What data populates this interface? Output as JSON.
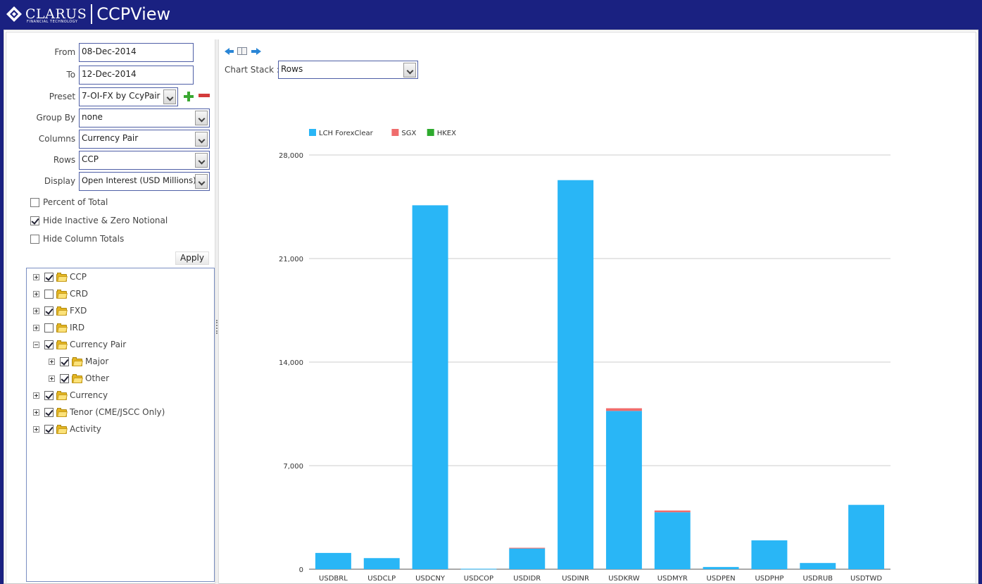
{
  "header": {
    "logo_text": "CLARUS",
    "logo_sub": "FINANCIAL TECHNOLOGY",
    "app_title": "CCPView"
  },
  "filters": {
    "from_label": "From :",
    "from_value": "08-Dec-2014",
    "to_label": "To :",
    "to_value": "12-Dec-2014",
    "preset_label": "Preset :",
    "preset_value": "7-OI-FX by CcyPair",
    "group_by_label": "Group By :",
    "group_by_value": "none",
    "columns_label": "Columns :",
    "columns_value": "Currency Pair",
    "rows_label": "Rows :",
    "rows_value": "CCP",
    "display_label": "Display :",
    "display_value": "Open Interest (USD Millions)"
  },
  "options": {
    "percent_of_total": {
      "label": "Percent of Total",
      "checked": false
    },
    "hide_inactive": {
      "label": "Hide Inactive & Zero Notional",
      "checked": true
    },
    "hide_column_totals": {
      "label": "Hide Column Totals",
      "checked": false
    }
  },
  "apply_label": "Apply",
  "tree": [
    {
      "label": "CCP",
      "checked": true,
      "expanded": false,
      "level": 0
    },
    {
      "label": "CRD",
      "checked": false,
      "expanded": false,
      "level": 0
    },
    {
      "label": "FXD",
      "checked": true,
      "expanded": false,
      "level": 0
    },
    {
      "label": "IRD",
      "checked": false,
      "expanded": false,
      "level": 0
    },
    {
      "label": "Currency Pair",
      "checked": true,
      "expanded": true,
      "level": 0
    },
    {
      "label": "Major",
      "checked": true,
      "expanded": false,
      "level": 1
    },
    {
      "label": "Other",
      "checked": true,
      "expanded": false,
      "level": 1
    },
    {
      "label": "Currency",
      "checked": true,
      "expanded": false,
      "level": 0
    },
    {
      "label": "Tenor (CME/JSCC Only)",
      "checked": true,
      "expanded": false,
      "level": 0
    },
    {
      "label": "Activity",
      "checked": true,
      "expanded": false,
      "level": 0
    }
  ],
  "chart_controls": {
    "stack_label": "Chart Stack :",
    "stack_value": "Rows"
  },
  "chart_data": {
    "type": "bar",
    "stacked": true,
    "title": "",
    "xlabel": "",
    "ylabel": "",
    "ylim": [
      0,
      28000
    ],
    "yticks": [
      "0",
      "7,000",
      "14,000",
      "21,000",
      "28,000"
    ],
    "ytick_values": [
      0,
      7000,
      14000,
      21000,
      28000
    ],
    "legend_position": "top-left",
    "categories": [
      "USDBRL",
      "USDCLP",
      "USDCNY",
      "USDCOP",
      "USDIDR",
      "USDINR",
      "USDKRW",
      "USDMYR",
      "USDPEN",
      "USDPHP",
      "USDRUB",
      "USDTWD"
    ],
    "series": [
      {
        "name": "LCH ForexClear",
        "color": "#29b6f6",
        "values": [
          1100,
          750,
          24600,
          30,
          1400,
          26300,
          10700,
          3850,
          150,
          1950,
          420,
          4350
        ]
      },
      {
        "name": "SGX",
        "color": "#ef6c6c",
        "values": [
          0,
          0,
          0,
          0,
          50,
          0,
          180,
          120,
          0,
          0,
          0,
          0
        ]
      },
      {
        "name": "HKEX",
        "color": "#2eaa2e",
        "values": [
          0,
          0,
          0,
          0,
          0,
          0,
          0,
          0,
          0,
          0,
          0,
          0
        ]
      }
    ]
  }
}
